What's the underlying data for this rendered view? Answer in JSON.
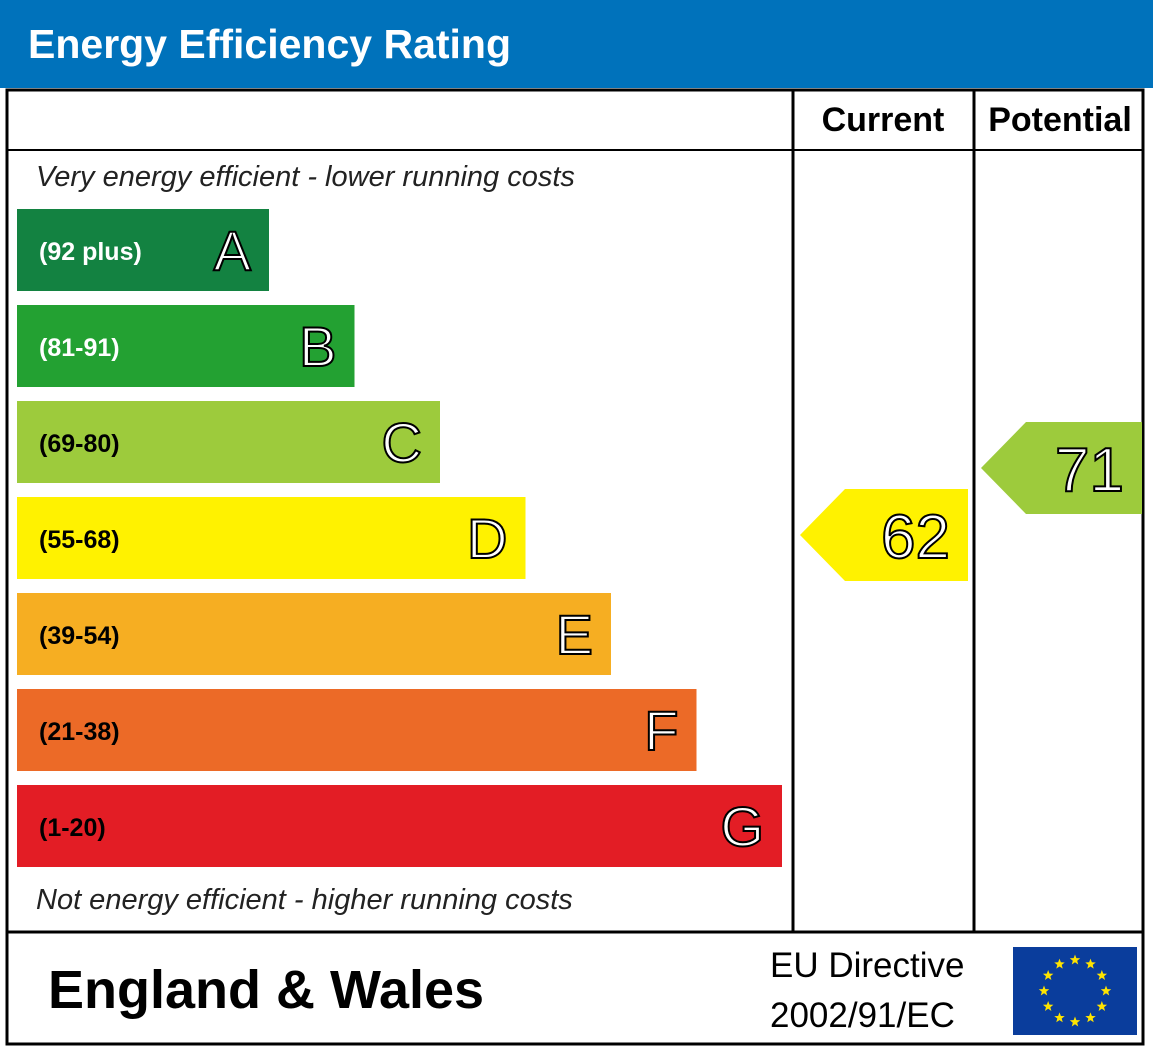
{
  "chart_data": {
    "type": "bar",
    "title": "Energy Efficiency Rating",
    "columns": [
      "Current",
      "Potential"
    ],
    "top_note": "Very energy efficient - lower running costs",
    "bottom_note": "Not energy efficient - higher running costs",
    "bands": [
      {
        "letter": "A",
        "range": "(92 plus)",
        "color": "#138241"
      },
      {
        "letter": "B",
        "range": "(81-91)",
        "color": "#23a132"
      },
      {
        "letter": "C",
        "range": "(69-80)",
        "color": "#9dcb3c"
      },
      {
        "letter": "D",
        "range": "(55-68)",
        "color": "#fff200"
      },
      {
        "letter": "E",
        "range": "(39-54)",
        "color": "#f6ae22"
      },
      {
        "letter": "F",
        "range": "(21-38)",
        "color": "#ec6a27"
      },
      {
        "letter": "G",
        "range": "(1-20)",
        "color": "#e31d25"
      }
    ],
    "current": {
      "value": 62,
      "band": "D",
      "color": "#fff200"
    },
    "potential": {
      "value": 71,
      "band": "C",
      "color": "#9dcb3c"
    }
  },
  "footer": {
    "region": "England & Wales",
    "directive_line1": "EU Directive",
    "directive_line2": "2002/91/EC"
  },
  "colors": {
    "header_bg": "#0072bb",
    "eu_flag_bg": "#0a3d9c",
    "eu_star": "#ffe400"
  }
}
